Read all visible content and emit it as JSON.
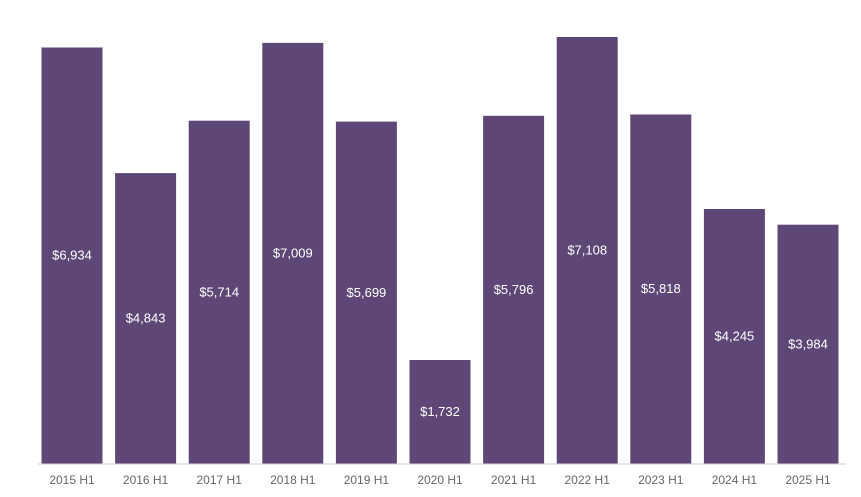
{
  "chart_data": {
    "type": "bar",
    "categories": [
      "2015 H1",
      "2016 H1",
      "2017 H1",
      "2018 H1",
      "2019 H1",
      "2020 H1",
      "2021 H1",
      "2022 H1",
      "2023 H1",
      "2024 H1",
      "2025 H1"
    ],
    "values": [
      6934,
      4843,
      5714,
      7009,
      5699,
      1732,
      5796,
      7108,
      5818,
      4245,
      3984
    ],
    "data_labels": [
      "$6,934",
      "$4,843",
      "$5,714",
      "$7,009",
      "$5,699",
      "$1,732",
      "$5,796",
      "$7,108",
      "$5,818",
      "$4,245",
      "$3,984"
    ],
    "title": "",
    "xlabel": "",
    "ylabel": "",
    "ylim": [
      0,
      7108
    ],
    "grid": false,
    "legend": "none",
    "colors": {
      "bar": "#5e4777",
      "label": "#ffffff",
      "axis": "#d0d0d0",
      "tick": "#666666"
    }
  }
}
